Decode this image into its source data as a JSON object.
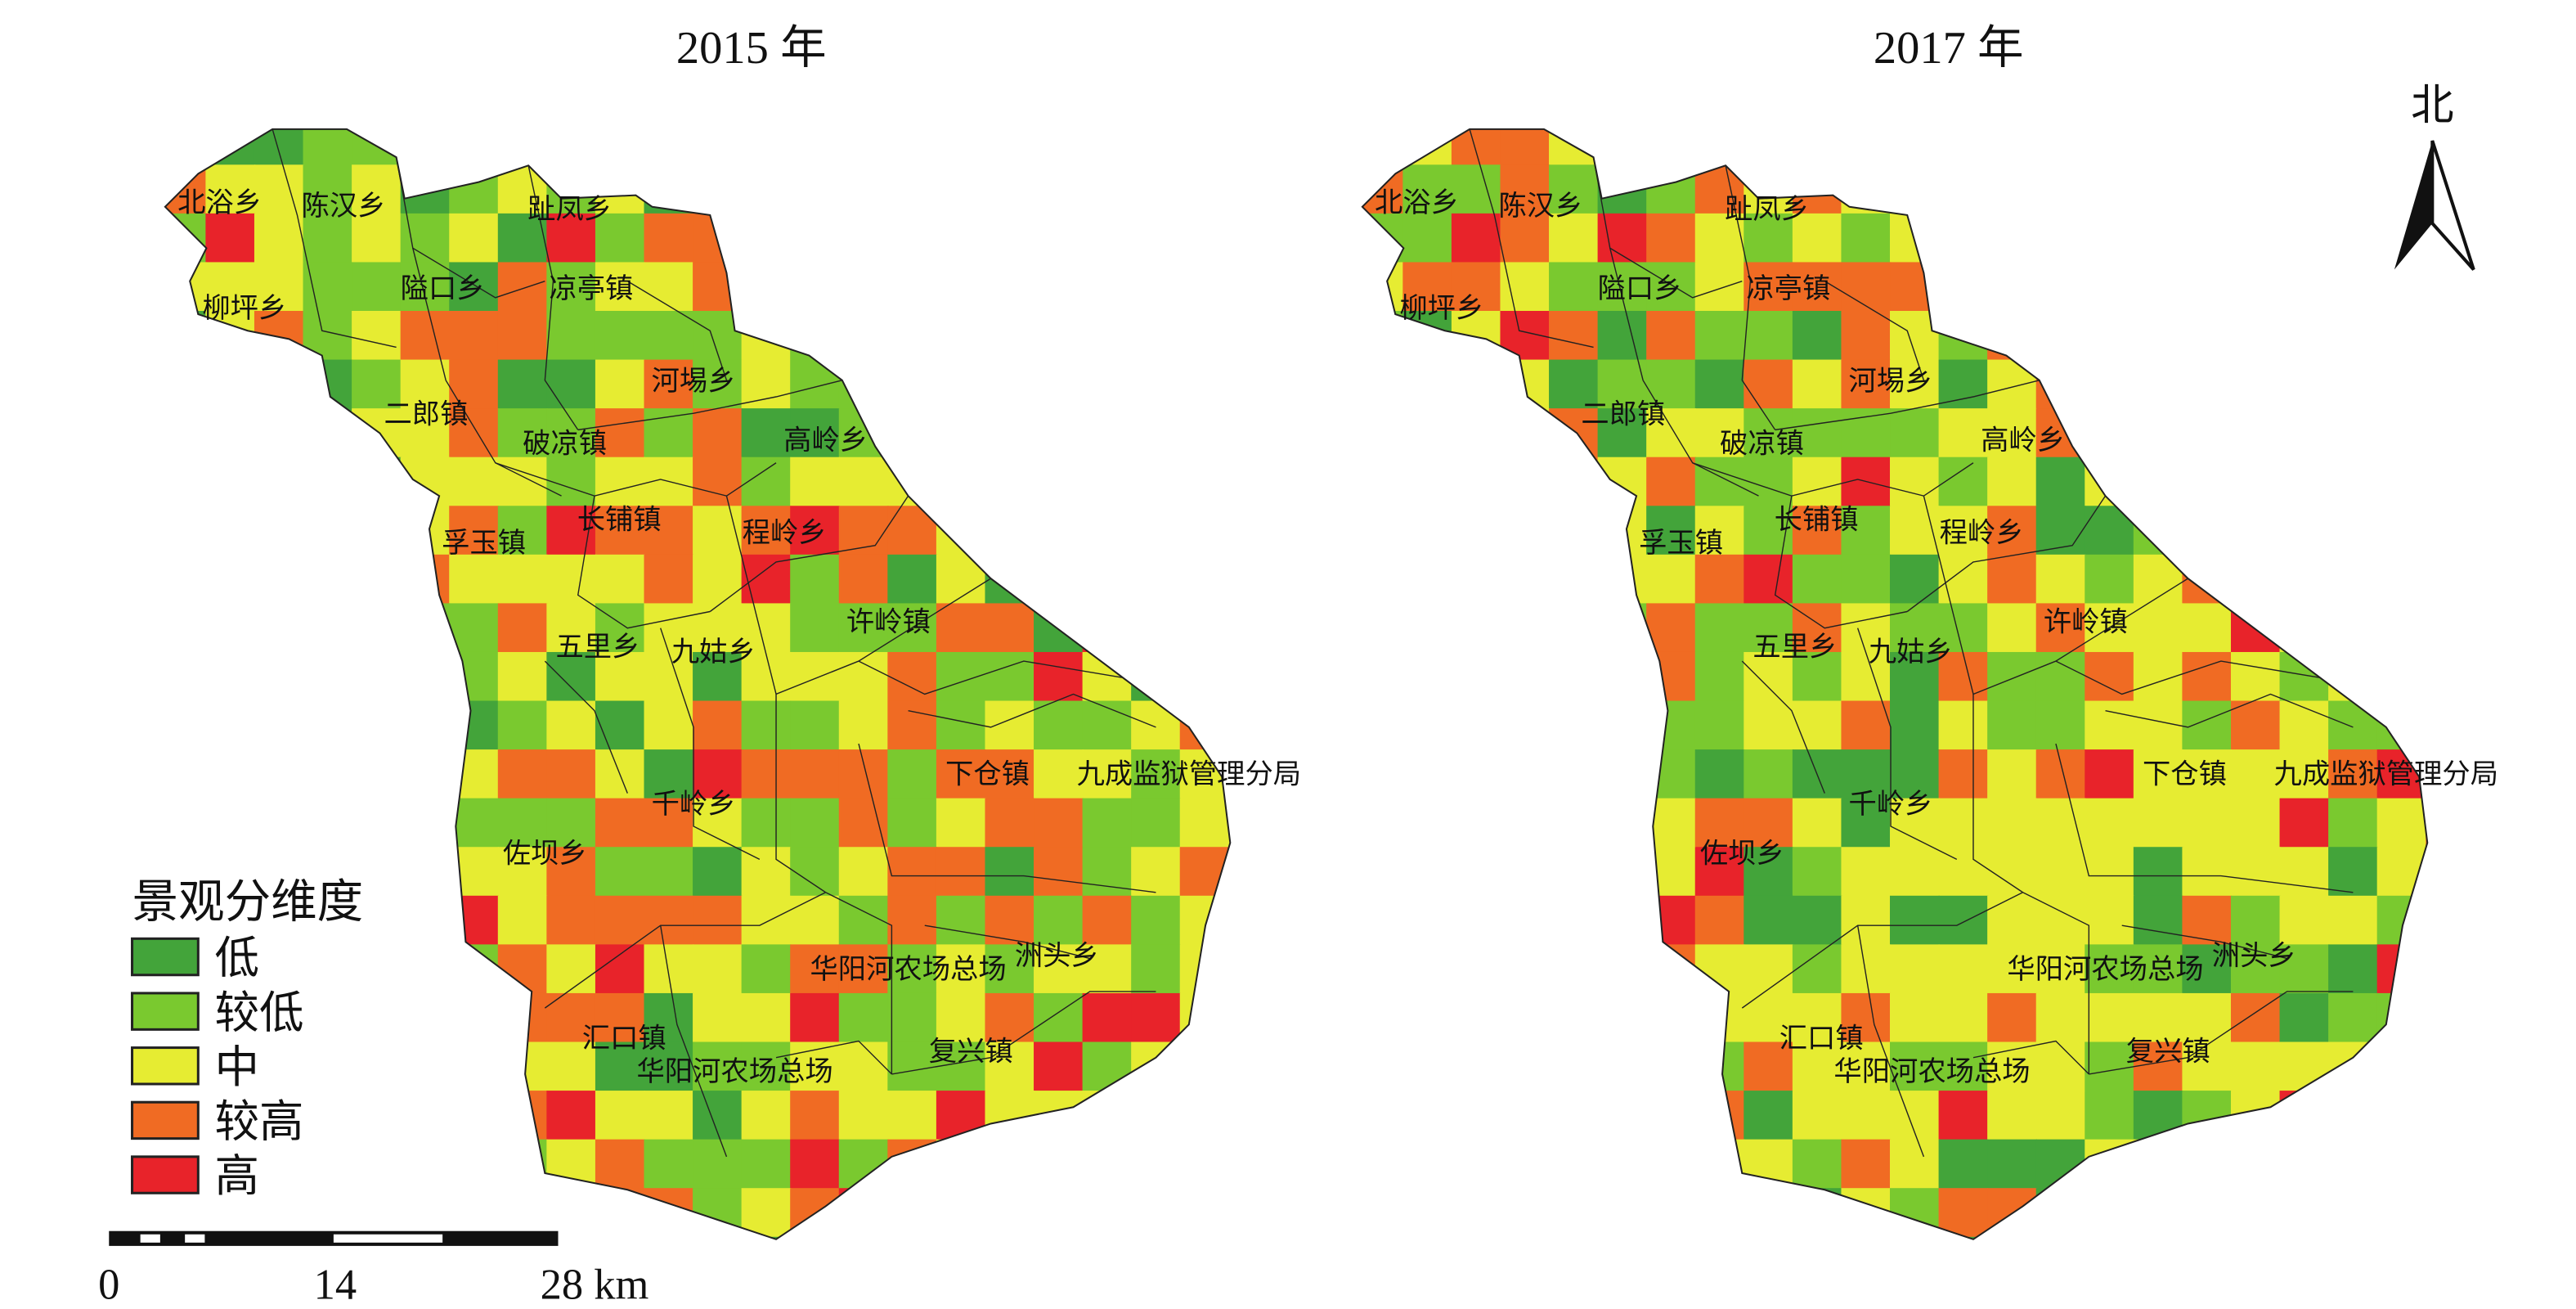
{
  "maps": [
    {
      "title": "2015 年",
      "seed": 7,
      "bias": [
        0.14,
        0.3,
        0.3,
        0.18,
        0.08
      ]
    },
    {
      "title": "2017 年",
      "seed": 23,
      "bias": [
        0.12,
        0.22,
        0.4,
        0.18,
        0.08
      ]
    }
  ],
  "labels": [
    "北浴乡",
    "陈汉乡",
    "趾凤乡",
    "柳坪乡",
    "隘口乡",
    "凉亭镇",
    "河埸乡",
    "二郎镇",
    "破凉镇",
    "高岭乡",
    "孚玉镇",
    "长铺镇",
    "程岭乡",
    "许岭镇",
    "五里乡",
    "九姑乡",
    "下仓镇",
    "九成监狱管理分局",
    "千岭乡",
    "佐坝乡",
    "华阳河农场总场",
    "洲头乡",
    "汇口镇",
    "华阳河农场总场",
    "复兴镇"
  ],
  "legend": {
    "title": "景观分维度",
    "items": [
      {
        "label": "低",
        "color": "#43a43a"
      },
      {
        "label": "较低",
        "color": "#7ac92f"
      },
      {
        "label": "中",
        "color": "#e6ec32"
      },
      {
        "label": "较高",
        "color": "#f06b23"
      },
      {
        "label": "高",
        "color": "#e8232a"
      }
    ]
  },
  "scale_bar": {
    "ticks": [
      "0",
      "14",
      "28 km"
    ]
  },
  "north_arrow": {
    "label": "北"
  }
}
